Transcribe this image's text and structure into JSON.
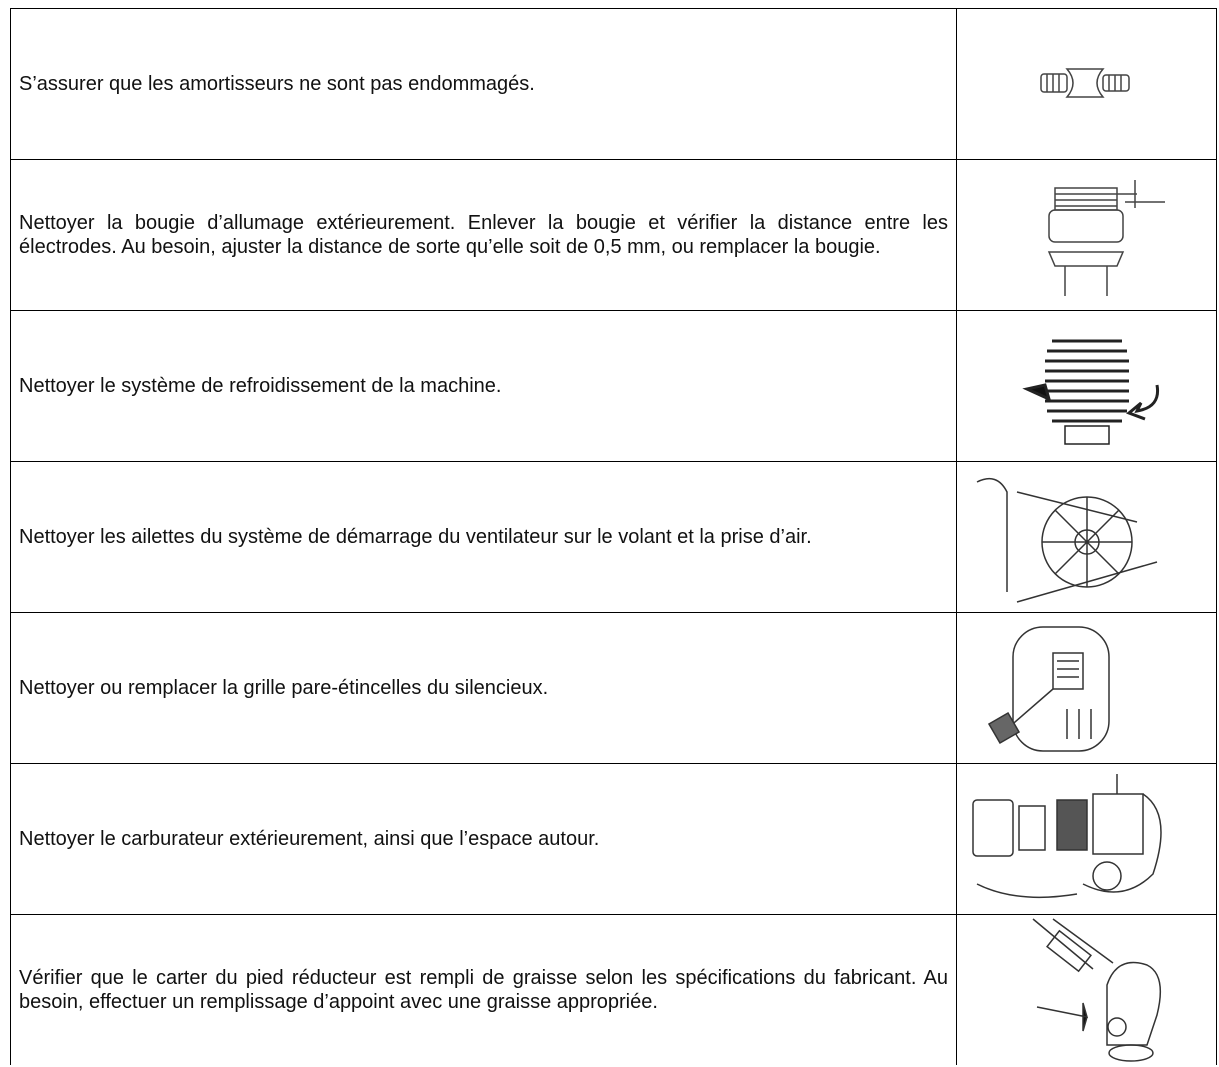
{
  "table": {
    "rows": [
      {
        "text": "S’assurer que les amortisseurs ne sont pas endommagés."
      },
      {
        "text": "Nettoyer la bougie d’allumage extérieurement. Enlever la bougie et vérifier la distance entre les électrodes. Au besoin, ajuster la distance de sorte qu’elle soit de 0,5 mm, ou remplacer la bougie."
      },
      {
        "text": "Nettoyer le système de refroidissement de la machine."
      },
      {
        "text": "Nettoyer les ailettes du système de démarrage du ventilateur sur le volant et la prise d’air."
      },
      {
        "text": "Nettoyer ou remplacer la grille pare-étincelles du silencieux."
      },
      {
        "text": "Nettoyer le carburateur extérieurement, ainsi que l’espace autour."
      },
      {
        "text": "Vérifier que le carter du pied réducteur est rempli de graisse selon les spécifications du fabricant. Au besoin, effectuer un remplissage d’appoint avec une graisse appropriée."
      }
    ]
  }
}
